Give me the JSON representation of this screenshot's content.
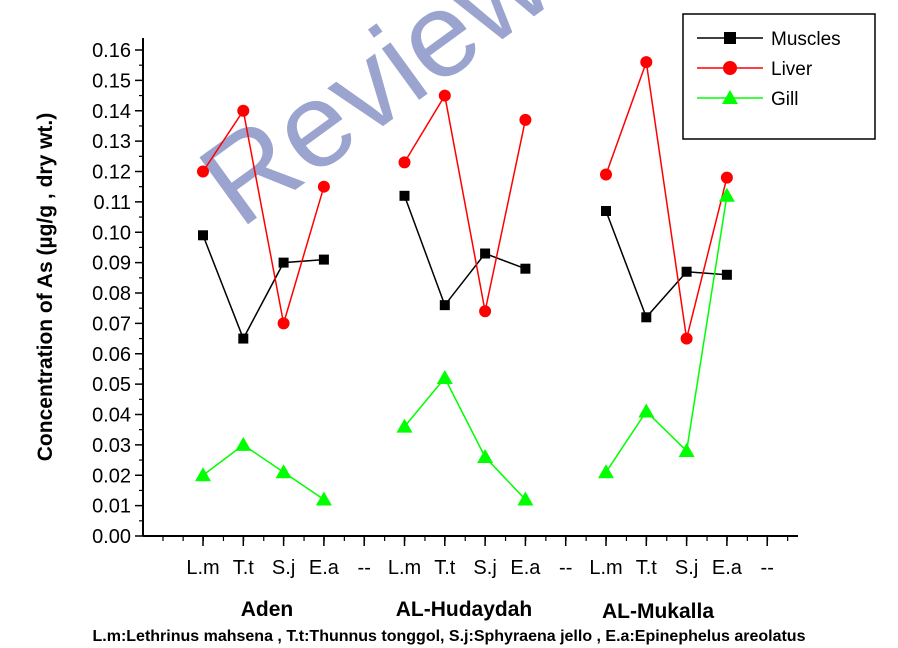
{
  "chart_data": {
    "type": "line",
    "ylabel": "Concentration of As (µg/g , dry wt.)",
    "ylim": [
      0.0,
      0.165
    ],
    "yticks": [
      "0.00",
      "0.01",
      "0.02",
      "0.03",
      "0.04",
      "0.05",
      "0.06",
      "0.07",
      "0.08",
      "0.09",
      "0.10",
      "0.11",
      "0.12",
      "0.13",
      "0.14",
      "0.15",
      "0.16"
    ],
    "categories": [
      "L.m",
      "T.t",
      "S.j",
      "E.a",
      "--",
      "L.m",
      "T.t",
      "S.j",
      "E.a",
      "--",
      "L.m",
      "T.t",
      "S.j",
      "E.a",
      "--"
    ],
    "groups": [
      "Aden",
      "AL-Hudaydah",
      "AL-Mukalla"
    ],
    "series": [
      {
        "name": "Muscles",
        "color": "#000000",
        "marker": "square",
        "values": [
          0.099,
          0.065,
          0.09,
          0.091,
          null,
          0.112,
          0.076,
          0.093,
          0.088,
          null,
          0.107,
          0.072,
          0.087,
          0.086,
          null
        ]
      },
      {
        "name": "Liver",
        "color": "#ff0000",
        "marker": "circle",
        "values": [
          0.12,
          0.14,
          0.07,
          0.115,
          null,
          0.123,
          0.145,
          0.074,
          0.137,
          null,
          0.119,
          0.156,
          0.065,
          0.118,
          null
        ]
      },
      {
        "name": "Gill",
        "color": "#00ff00",
        "marker": "triangle",
        "values": [
          0.02,
          0.03,
          0.021,
          0.012,
          null,
          0.036,
          0.052,
          0.026,
          0.012,
          null,
          0.021,
          0.041,
          0.028,
          0.112,
          null
        ]
      }
    ],
    "legend_position": "top-right",
    "footnote": "L.m:Lethrinus mahsena , T.t:Thunnus tonggol, S.j:Sphyraena jello , E.a:Epinephelus areolatus",
    "watermark": "Review"
  }
}
